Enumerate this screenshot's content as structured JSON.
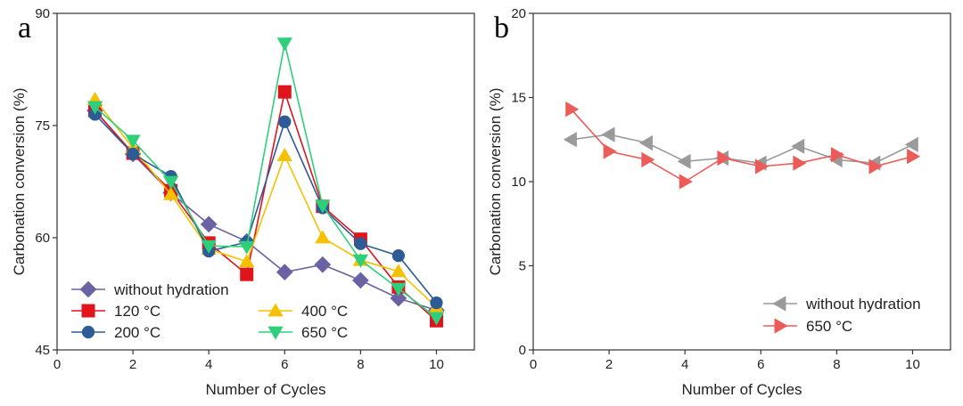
{
  "chart_data": [
    {
      "type": "line",
      "panel_label": "a",
      "xlabel": "Number of Cycles",
      "ylabel": "Carbonation conversion (%)",
      "xlim": [
        0,
        11
      ],
      "ylim": [
        45,
        90
      ],
      "xticks": [
        0,
        2,
        4,
        6,
        8,
        10
      ],
      "yticks": [
        45,
        60,
        75,
        90
      ],
      "x": [
        1,
        2,
        3,
        4,
        5,
        6,
        7,
        8,
        9,
        10
      ],
      "series": [
        {
          "name": "without hydration",
          "color": "#6a63a3",
          "marker": "diamond",
          "values": [
            77,
            71.2,
            66,
            61.8,
            59.5,
            55.4,
            56.4,
            54.3,
            51.9,
            50.3
          ]
        },
        {
          "name": "120 °C",
          "color": "#e0141d",
          "marker": "square",
          "values": [
            77,
            71.3,
            66.3,
            59.3,
            55.1,
            79.5,
            64.2,
            59.8,
            53.4,
            48.9
          ]
        },
        {
          "name": "400 °C",
          "color": "#f5c000",
          "marker": "triangle-up",
          "values": [
            78.5,
            72,
            65.8,
            58.5,
            56.8,
            71,
            60,
            57,
            55.5,
            50.7
          ]
        },
        {
          "name": "200 °C",
          "color": "#2d5b96",
          "marker": "circle",
          "values": [
            76.5,
            71.2,
            68.2,
            58.2,
            59.4,
            75.5,
            64,
            59.2,
            57.6,
            51.3
          ]
        },
        {
          "name": "650 °C",
          "color": "#2ecf7a",
          "marker": "triangle-down",
          "values": [
            77.5,
            73,
            67.5,
            58.9,
            58.8,
            86,
            64.3,
            57,
            53.2,
            49.3
          ]
        }
      ],
      "legend": [
        {
          "label": "without hydration",
          "series": 0
        },
        {
          "label": "120 °C",
          "series": 1
        },
        {
          "label": "400 °C",
          "series": 2
        },
        {
          "label": "200 °C",
          "series": 3
        },
        {
          "label": "650 °C",
          "series": 4
        }
      ]
    },
    {
      "type": "line",
      "panel_label": "b",
      "xlabel": "Number of Cycles",
      "ylabel": "Carbonation conversion (%)",
      "xlim": [
        0,
        11
      ],
      "ylim": [
        0,
        20
      ],
      "xticks": [
        0,
        2,
        4,
        6,
        8,
        10
      ],
      "yticks": [
        0,
        5,
        10,
        15,
        20
      ],
      "x": [
        1,
        2,
        3,
        4,
        5,
        6,
        7,
        8,
        9,
        10
      ],
      "series": [
        {
          "name": "without hydration",
          "color": "#9a9a9a",
          "marker": "triangle-left",
          "values": [
            12.5,
            12.8,
            12.3,
            11.2,
            11.4,
            11.1,
            12.1,
            11.3,
            11.1,
            12.2
          ]
        },
        {
          "name": "650 °C",
          "color": "#ec5b58",
          "marker": "triangle-right",
          "values": [
            14.3,
            11.8,
            11.3,
            10,
            11.4,
            10.9,
            11.1,
            11.6,
            10.9,
            11.5
          ]
        }
      ],
      "legend": [
        {
          "label": "without hydration",
          "series": 0
        },
        {
          "label": "650 °C",
          "series": 1
        }
      ]
    }
  ]
}
